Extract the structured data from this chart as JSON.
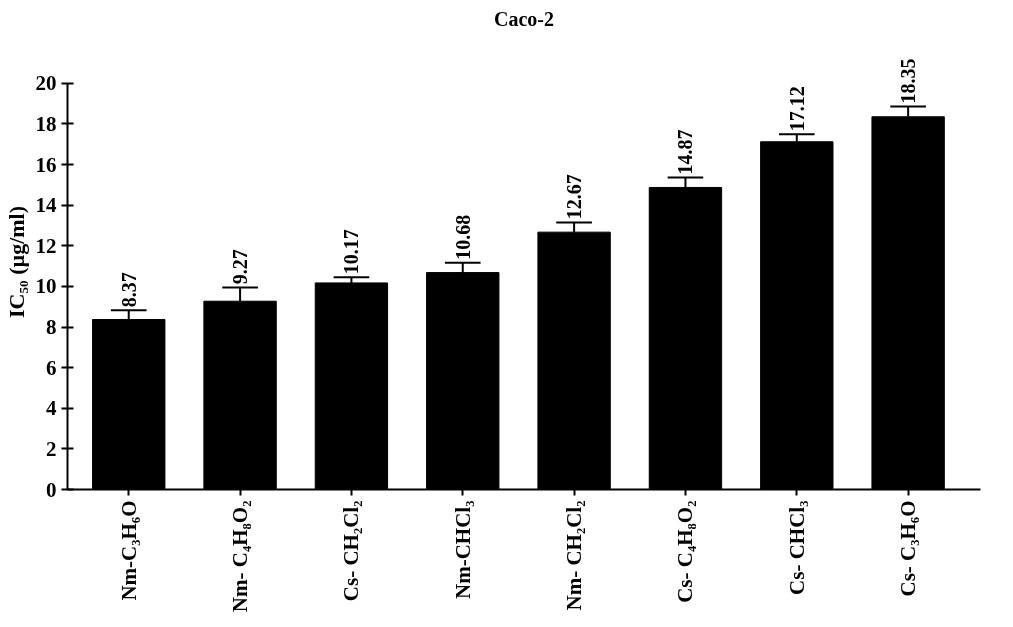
{
  "chart_data": {
    "type": "bar",
    "title": "Caco-2",
    "ylabel": "IC₅₀ (µg/ml)",
    "categories": [
      "Nm-C₃H₆O",
      "Nm- C₄H₈O₂",
      "Cs- CH₂Cl₂",
      "Nm-CHCl₃",
      "Nm- CH₂Cl₂",
      "Cs- C₄H₈O₂",
      "Cs- CHCl₃",
      "Cs- C₃H₆O"
    ],
    "values": [
      8.37,
      9.27,
      10.17,
      10.68,
      12.67,
      14.87,
      17.12,
      18.35
    ],
    "errors": [
      0.45,
      0.68,
      0.28,
      0.48,
      0.48,
      0.49,
      0.37,
      0.5
    ],
    "color": "#000000",
    "ylim": [
      0,
      20
    ],
    "yticks": [
      0,
      2,
      4,
      6,
      8,
      10,
      12,
      14,
      16,
      18,
      20
    ],
    "data_labels": true,
    "grid": false
  }
}
